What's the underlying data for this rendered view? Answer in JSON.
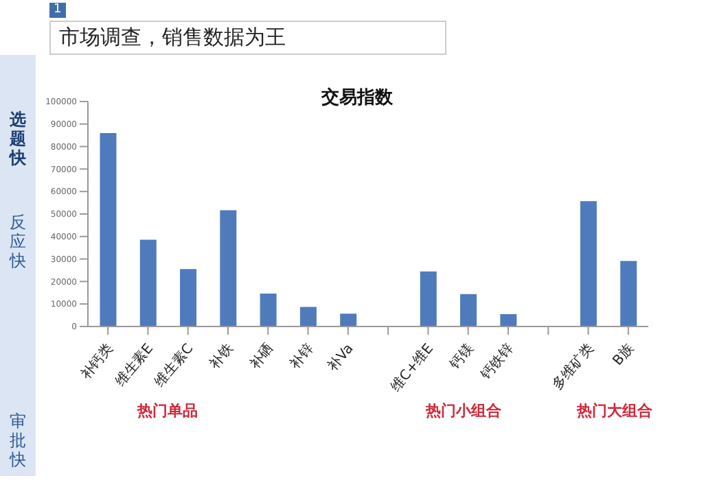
{
  "chart_data": {
    "type": "bar",
    "title": "交易指数",
    "subtitle": "市场调查，销售数据为王",
    "categories": [
      "补钙类",
      "维生素E",
      "维生素C",
      "补铁",
      "补硒",
      "补锌",
      "补Va",
      null,
      "维C+维E",
      "钙镁",
      "钙铁锌",
      null,
      "多维矿类",
      "B族"
    ],
    "values": [
      86000,
      38600,
      25500,
      51700,
      14600,
      8700,
      5700,
      null,
      24500,
      14400,
      5500,
      null,
      55700,
      29100
    ],
    "color": "#4f7bbd",
    "ylim": [
      0,
      100000
    ],
    "yticks": [
      0,
      10000,
      20000,
      30000,
      40000,
      50000,
      60000,
      70000,
      80000,
      90000,
      100000
    ],
    "annotations": [
      "1",
      "选题快",
      "反应快",
      "审批快",
      "热门单品",
      "热门小组合",
      "热门大组合"
    ]
  }
}
